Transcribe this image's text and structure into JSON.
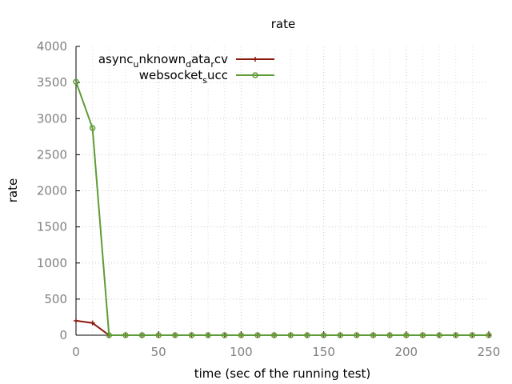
{
  "chart_data": {
    "type": "line",
    "title": "rate",
    "xlabel": "time (sec of the running test)",
    "ylabel": "rate",
    "xlim": [
      0,
      250
    ],
    "ylim": [
      0,
      4000
    ],
    "x_ticks": [
      0,
      50,
      100,
      150,
      200,
      250
    ],
    "y_ticks": [
      0,
      500,
      1000,
      1500,
      2000,
      2500,
      3000,
      3500,
      4000
    ],
    "grid": true,
    "legend_position": "top-left",
    "series": [
      {
        "name": "async_unknown_data_rcv",
        "legend_parts": [
          {
            "text": "async",
            "sub": false
          },
          {
            "text": "u",
            "sub": true
          },
          {
            "text": "nknown",
            "sub": false
          },
          {
            "text": "d",
            "sub": true
          },
          {
            "text": "ata",
            "sub": false
          },
          {
            "text": "r",
            "sub": true
          },
          {
            "text": "cv",
            "sub": false
          }
        ],
        "color": "#8b1a0e",
        "marker": "plus",
        "x": [
          0,
          10,
          20,
          30,
          40,
          50,
          60,
          70,
          80,
          90,
          100,
          110,
          120,
          130,
          140,
          150,
          160,
          170,
          180,
          190,
          200,
          210,
          220,
          230,
          240,
          250
        ],
        "y": [
          200,
          170,
          0,
          0,
          0,
          0,
          0,
          0,
          0,
          0,
          0,
          0,
          0,
          0,
          0,
          0,
          0,
          0,
          0,
          0,
          0,
          0,
          0,
          0,
          0,
          0
        ]
      },
      {
        "name": "websocket_succ",
        "legend_parts": [
          {
            "text": "websocket",
            "sub": false
          },
          {
            "text": "s",
            "sub": true
          },
          {
            "text": "ucc",
            "sub": false
          }
        ],
        "color": "#5e9c36",
        "marker": "circle",
        "x": [
          0,
          10,
          20,
          30,
          40,
          50,
          60,
          70,
          80,
          90,
          100,
          110,
          120,
          130,
          140,
          150,
          160,
          170,
          180,
          190,
          200,
          210,
          220,
          230,
          240,
          250
        ],
        "y": [
          3510,
          2870,
          0,
          0,
          0,
          0,
          0,
          0,
          0,
          0,
          0,
          0,
          0,
          0,
          0,
          0,
          0,
          0,
          0,
          0,
          0,
          0,
          0,
          0,
          0,
          0
        ]
      }
    ]
  }
}
